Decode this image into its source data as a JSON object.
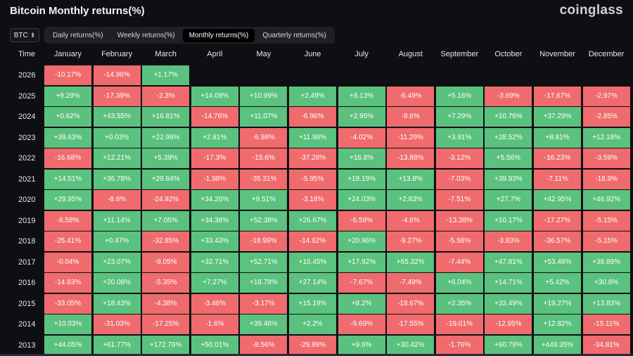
{
  "title": "Bitcoin Monthly returns(%)",
  "brand": "coinglass",
  "coin_select": {
    "value": "BTC",
    "icon": "chevron-updown-icon"
  },
  "tabs": [
    {
      "label": "Daily returns(%)",
      "active": false
    },
    {
      "label": "Weekly returns(%)",
      "active": false
    },
    {
      "label": "Monthly returns(%)",
      "active": true
    },
    {
      "label": "Quarterly returns(%)",
      "active": false
    }
  ],
  "table": {
    "year_header": "Time",
    "months": [
      "January",
      "February",
      "March",
      "April",
      "May",
      "June",
      "July",
      "August",
      "September",
      "October",
      "November",
      "December"
    ],
    "rows": [
      {
        "year": "2026",
        "values": [
          "-10.17%",
          "-14.96%",
          "+1.17%",
          "",
          "",
          "",
          "",
          "",
          "",
          "",
          "",
          ""
        ]
      },
      {
        "year": "2025",
        "values": [
          "+9.29%",
          "-17.39%",
          "-2.3%",
          "+14.08%",
          "+10.99%",
          "+2.49%",
          "+8.13%",
          "-6.49%",
          "+5.16%",
          "-3.69%",
          "-17.67%",
          "-2.97%"
        ]
      },
      {
        "year": "2024",
        "values": [
          "+0.62%",
          "+43.55%",
          "+16.81%",
          "-14.76%",
          "+11.07%",
          "-6.96%",
          "+2.95%",
          "-8.6%",
          "+7.29%",
          "+10.76%",
          "+37.29%",
          "-2.85%"
        ]
      },
      {
        "year": "2023",
        "values": [
          "+39.63%",
          "+0.03%",
          "+22.96%",
          "+2.81%",
          "-6.98%",
          "+11.98%",
          "-4.02%",
          "-11.29%",
          "+3.91%",
          "+28.52%",
          "+8.81%",
          "+12.18%"
        ]
      },
      {
        "year": "2022",
        "values": [
          "-16.68%",
          "+12.21%",
          "+5.39%",
          "-17.3%",
          "-15.6%",
          "-37.28%",
          "+16.8%",
          "-13.88%",
          "-3.12%",
          "+5.56%",
          "-16.23%",
          "-3.59%"
        ]
      },
      {
        "year": "2021",
        "values": [
          "+14.51%",
          "+36.78%",
          "+29.84%",
          "-1.98%",
          "-35.31%",
          "-5.95%",
          "+18.19%",
          "+13.8%",
          "-7.03%",
          "+39.93%",
          "-7.11%",
          "-18.9%"
        ]
      },
      {
        "year": "2020",
        "values": [
          "+29.95%",
          "-8.6%",
          "-24.92%",
          "+34.26%",
          "+9.51%",
          "-3.18%",
          "+24.03%",
          "+2.83%",
          "-7.51%",
          "+27.7%",
          "+42.95%",
          "+46.92%"
        ]
      },
      {
        "year": "2019",
        "values": [
          "-8.58%",
          "+11.14%",
          "+7.05%",
          "+34.36%",
          "+52.38%",
          "+26.67%",
          "-6.59%",
          "-4.6%",
          "-13.38%",
          "+10.17%",
          "-17.27%",
          "-5.15%"
        ]
      },
      {
        "year": "2018",
        "values": [
          "-25.41%",
          "+0.47%",
          "-32.85%",
          "+33.43%",
          "-18.99%",
          "-14.62%",
          "+20.96%",
          "-9.27%",
          "-5.58%",
          "-3.83%",
          "-36.57%",
          "-5.15%"
        ]
      },
      {
        "year": "2017",
        "values": [
          "-0.04%",
          "+23.07%",
          "-9.05%",
          "+32.71%",
          "+52.71%",
          "+10.45%",
          "+17.92%",
          "+65.32%",
          "-7.44%",
          "+47.81%",
          "+53.48%",
          "+38.89%"
        ]
      },
      {
        "year": "2016",
        "values": [
          "-14.83%",
          "+20.08%",
          "-5.35%",
          "+7.27%",
          "+18.78%",
          "+27.14%",
          "-7.67%",
          "-7.49%",
          "+6.04%",
          "+14.71%",
          "+5.42%",
          "+30.8%"
        ]
      },
      {
        "year": "2015",
        "values": [
          "-33.05%",
          "+18.43%",
          "-4.38%",
          "-3.46%",
          "-3.17%",
          "+15.19%",
          "+8.2%",
          "-18.67%",
          "+2.35%",
          "+33.49%",
          "+19.27%",
          "+13.83%"
        ]
      },
      {
        "year": "2014",
        "values": [
          "+10.03%",
          "-31.03%",
          "-17.25%",
          "-1.6%",
          "+39.46%",
          "+2.2%",
          "-9.69%",
          "-17.55%",
          "-19.01%",
          "-12.95%",
          "+12.82%",
          "-15.11%"
        ]
      },
      {
        "year": "2013",
        "values": [
          "+44.05%",
          "+61.77%",
          "+172.76%",
          "+50.01%",
          "-8.56%",
          "-29.89%",
          "+9.6%",
          "+30.42%",
          "-1.76%",
          "+60.79%",
          "+449.35%",
          "-34.81%"
        ]
      }
    ]
  },
  "colors": {
    "positive": "#5ac17e",
    "negative": "#ef6b6d",
    "background": "#0e0f13"
  }
}
